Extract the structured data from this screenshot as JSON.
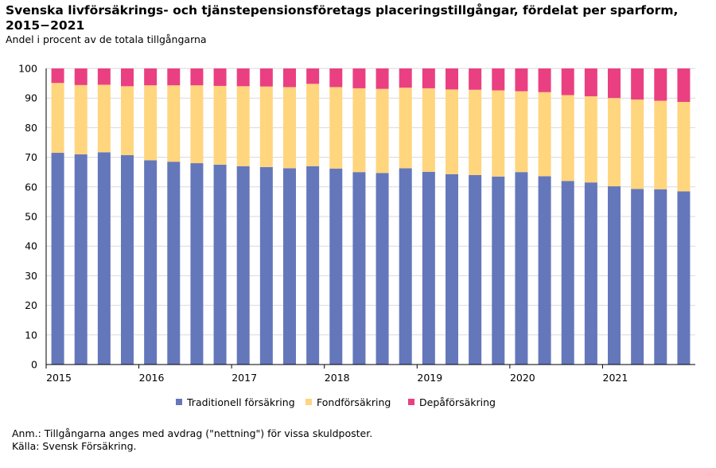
{
  "title": "Svenska livförsäkrings- och tjänstepensionsföretags placeringstillgångar, fördelat per sparform, 2015−2021",
  "subtitle": "Andel i procent av de totala tillgångarna",
  "note": "Anm.: Tillgångarna anges med avdrag (\"nettning\") för vissa skuldposter.",
  "source": "Källa: Svensk Försäkring.",
  "colors": {
    "traditionell": "#6577bb",
    "fond": "#ffd57e",
    "depa": "#ea4082",
    "grid": "#d9d9d9",
    "axis": "#000000"
  },
  "chart_data": {
    "type": "bar",
    "stacked": true,
    "ylim": [
      0,
      100
    ],
    "yticks": [
      0,
      10,
      20,
      30,
      40,
      50,
      60,
      70,
      80,
      90,
      100
    ],
    "grid": true,
    "legend_position": "bottom",
    "x_tick_labels": [
      "2015",
      "2016",
      "2017",
      "2018",
      "2019",
      "2020",
      "2021"
    ],
    "bars_per_year": 4,
    "series": [
      {
        "name": "Traditionell försäkring",
        "color": "#6577bb",
        "values": [
          71.5,
          71,
          71.7,
          70.7,
          69,
          68.5,
          68,
          67.5,
          67,
          66.7,
          66.3,
          67,
          66.2,
          65,
          64.7,
          66.3,
          65.1,
          64.3,
          64,
          63.5,
          65,
          63.6,
          62,
          61.5,
          60.2,
          59.3,
          59.2,
          58.5
        ]
      },
      {
        "name": "Fondförsäkring",
        "color": "#ffd57e",
        "values": [
          23.6,
          23.4,
          22.8,
          23.3,
          25.3,
          25.8,
          26.3,
          26.6,
          27,
          27.2,
          27.4,
          27.8,
          27.5,
          28.3,
          28.4,
          27.2,
          28.2,
          28.6,
          28.8,
          29.1,
          27.3,
          28.4,
          29,
          29.1,
          29.8,
          30.2,
          29.9,
          30.2
        ]
      },
      {
        "name": "Depåförsäkring",
        "color": "#ea4082",
        "values": [
          4.9,
          5.6,
          5.5,
          6,
          5.7,
          5.7,
          5.7,
          5.9,
          6,
          6.1,
          6.3,
          5.2,
          6.3,
          6.7,
          6.9,
          6.5,
          6.7,
          7.1,
          7.2,
          7.4,
          7.7,
          8,
          9,
          9.4,
          10,
          10.5,
          10.9,
          11.3
        ]
      }
    ]
  }
}
